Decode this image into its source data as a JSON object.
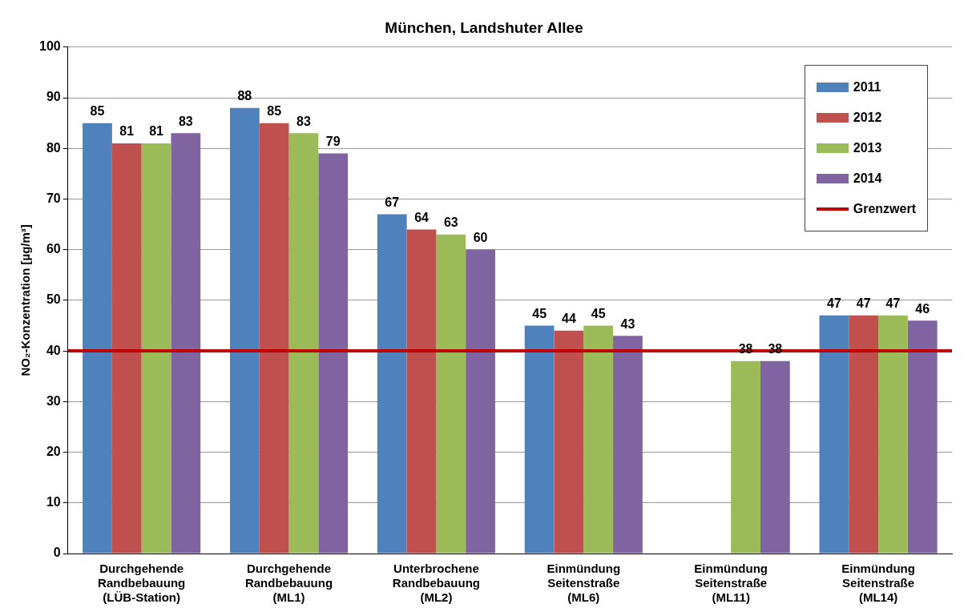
{
  "chart_data": {
    "type": "bar",
    "title": "München, Landshuter Allee",
    "ylabel": "NO₂-Konzentration [µg/m³]",
    "categories": [
      "Durchgehende\nRandbebauung\n(LÜB-Station)",
      "Durchgehende\nRandbebauung\n(ML1)",
      "Unterbrochene\nRandbebauung\n(ML2)",
      "Einmündung\nSeitenstraße\n(ML6)",
      "Einmündung\nSeitenstraße\n(ML11)",
      "Einmündung\nSeitenstraße\n(ML14)"
    ],
    "series": [
      {
        "name": "2011",
        "color": "#4f81bd",
        "values": [
          85,
          88,
          67,
          45,
          null,
          47
        ]
      },
      {
        "name": "2012",
        "color": "#c0504d",
        "values": [
          81,
          85,
          64,
          44,
          null,
          47
        ]
      },
      {
        "name": "2013",
        "color": "#9bbb59",
        "values": [
          81,
          83,
          63,
          45,
          38,
          47
        ]
      },
      {
        "name": "2014",
        "color": "#8064a2",
        "values": [
          83,
          79,
          60,
          43,
          38,
          46
        ]
      }
    ],
    "ylim": [
      0,
      100
    ],
    "yticks": [
      0,
      10,
      20,
      30,
      40,
      50,
      60,
      70,
      80,
      90,
      100
    ],
    "ref_lines": [
      {
        "axis": "y",
        "value": 40,
        "label": "Grenzwert",
        "color": "#c00000"
      }
    ],
    "grid": "y",
    "legend": "top right",
    "data_labels": true
  }
}
